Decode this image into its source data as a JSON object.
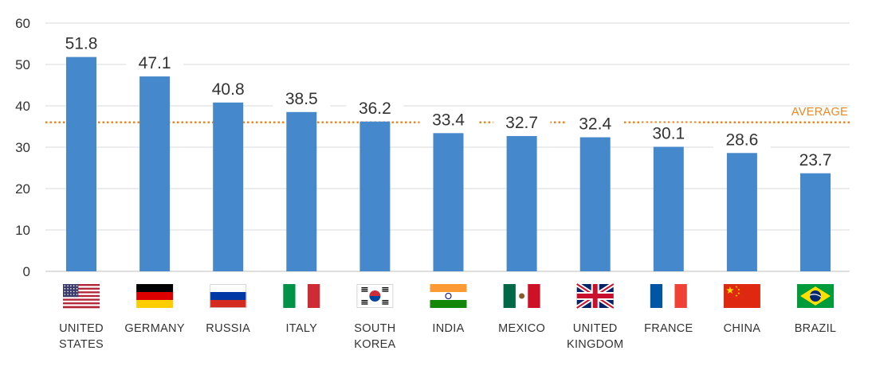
{
  "chart_data": {
    "type": "bar",
    "categories": [
      "UNITED STATES",
      "GERMANY",
      "RUSSIA",
      "ITALY",
      "SOUTH KOREA",
      "INDIA",
      "MEXICO",
      "UNITED KINGDOM",
      "FRANCE",
      "CHINA",
      "BRAZIL"
    ],
    "category_lines": [
      [
        "UNITED",
        "STATES"
      ],
      [
        "GERMANY"
      ],
      [
        "RUSSIA"
      ],
      [
        "ITALY"
      ],
      [
        "SOUTH",
        "KOREA"
      ],
      [
        "INDIA"
      ],
      [
        "MEXICO"
      ],
      [
        "UNITED",
        "KINGDOM"
      ],
      [
        "FRANCE"
      ],
      [
        "CHINA"
      ],
      [
        "BRAZIL"
      ]
    ],
    "values": [
      51.8,
      47.1,
      40.8,
      38.5,
      36.2,
      33.4,
      32.7,
      32.4,
      30.1,
      28.6,
      23.7
    ],
    "value_labels": [
      "51.8",
      "47.1",
      "40.8",
      "38.5",
      "36.2",
      "33.4",
      "32.7",
      "32.4",
      "30.1",
      "28.6",
      "23.7"
    ],
    "ylim": [
      0,
      60
    ],
    "yticks": [
      0,
      10,
      20,
      30,
      40,
      50,
      60
    ],
    "average": {
      "label": "AVERAGE",
      "value": 36
    },
    "grid": true,
    "legend": "none",
    "flags": [
      "us-flag",
      "germany-flag",
      "russia-flag",
      "italy-flag",
      "south-korea-flag",
      "india-flag",
      "mexico-flag",
      "uk-flag",
      "france-flag",
      "china-flag",
      "brazil-flag"
    ],
    "colors": {
      "bar": "#4688cc",
      "average": "#f0851e",
      "grid": "#d9d9d9",
      "text": "#333333"
    }
  }
}
